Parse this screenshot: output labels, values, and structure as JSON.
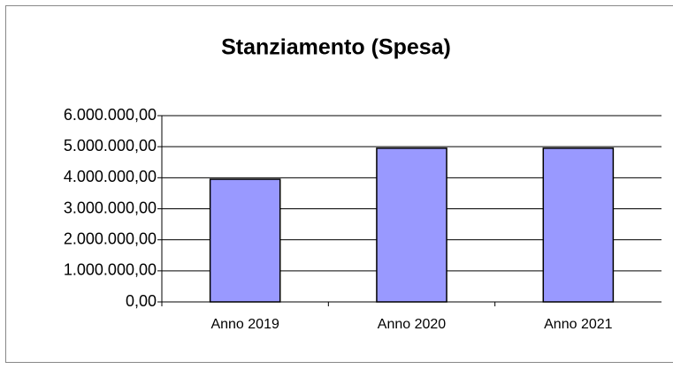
{
  "chart_data": {
    "type": "bar",
    "title": "Stanziamento (Spesa)",
    "categories": [
      "Anno 2019",
      "Anno 2020",
      "Anno 2021"
    ],
    "values": [
      3950000,
      4950000,
      4950000
    ],
    "color": "#9999ff",
    "ylim": [
      0,
      6000000
    ],
    "yticks": [
      {
        "value": 0,
        "label": "0,00"
      },
      {
        "value": 1000000,
        "label": "1.000.000,00"
      },
      {
        "value": 2000000,
        "label": "2.000.000,00"
      },
      {
        "value": 3000000,
        "label": "3.000.000,00"
      },
      {
        "value": 4000000,
        "label": "4.000.000,00"
      },
      {
        "value": 5000000,
        "label": "5.000.000,00"
      },
      {
        "value": 6000000,
        "label": "6.000.000,00"
      }
    ],
    "grid": true
  }
}
